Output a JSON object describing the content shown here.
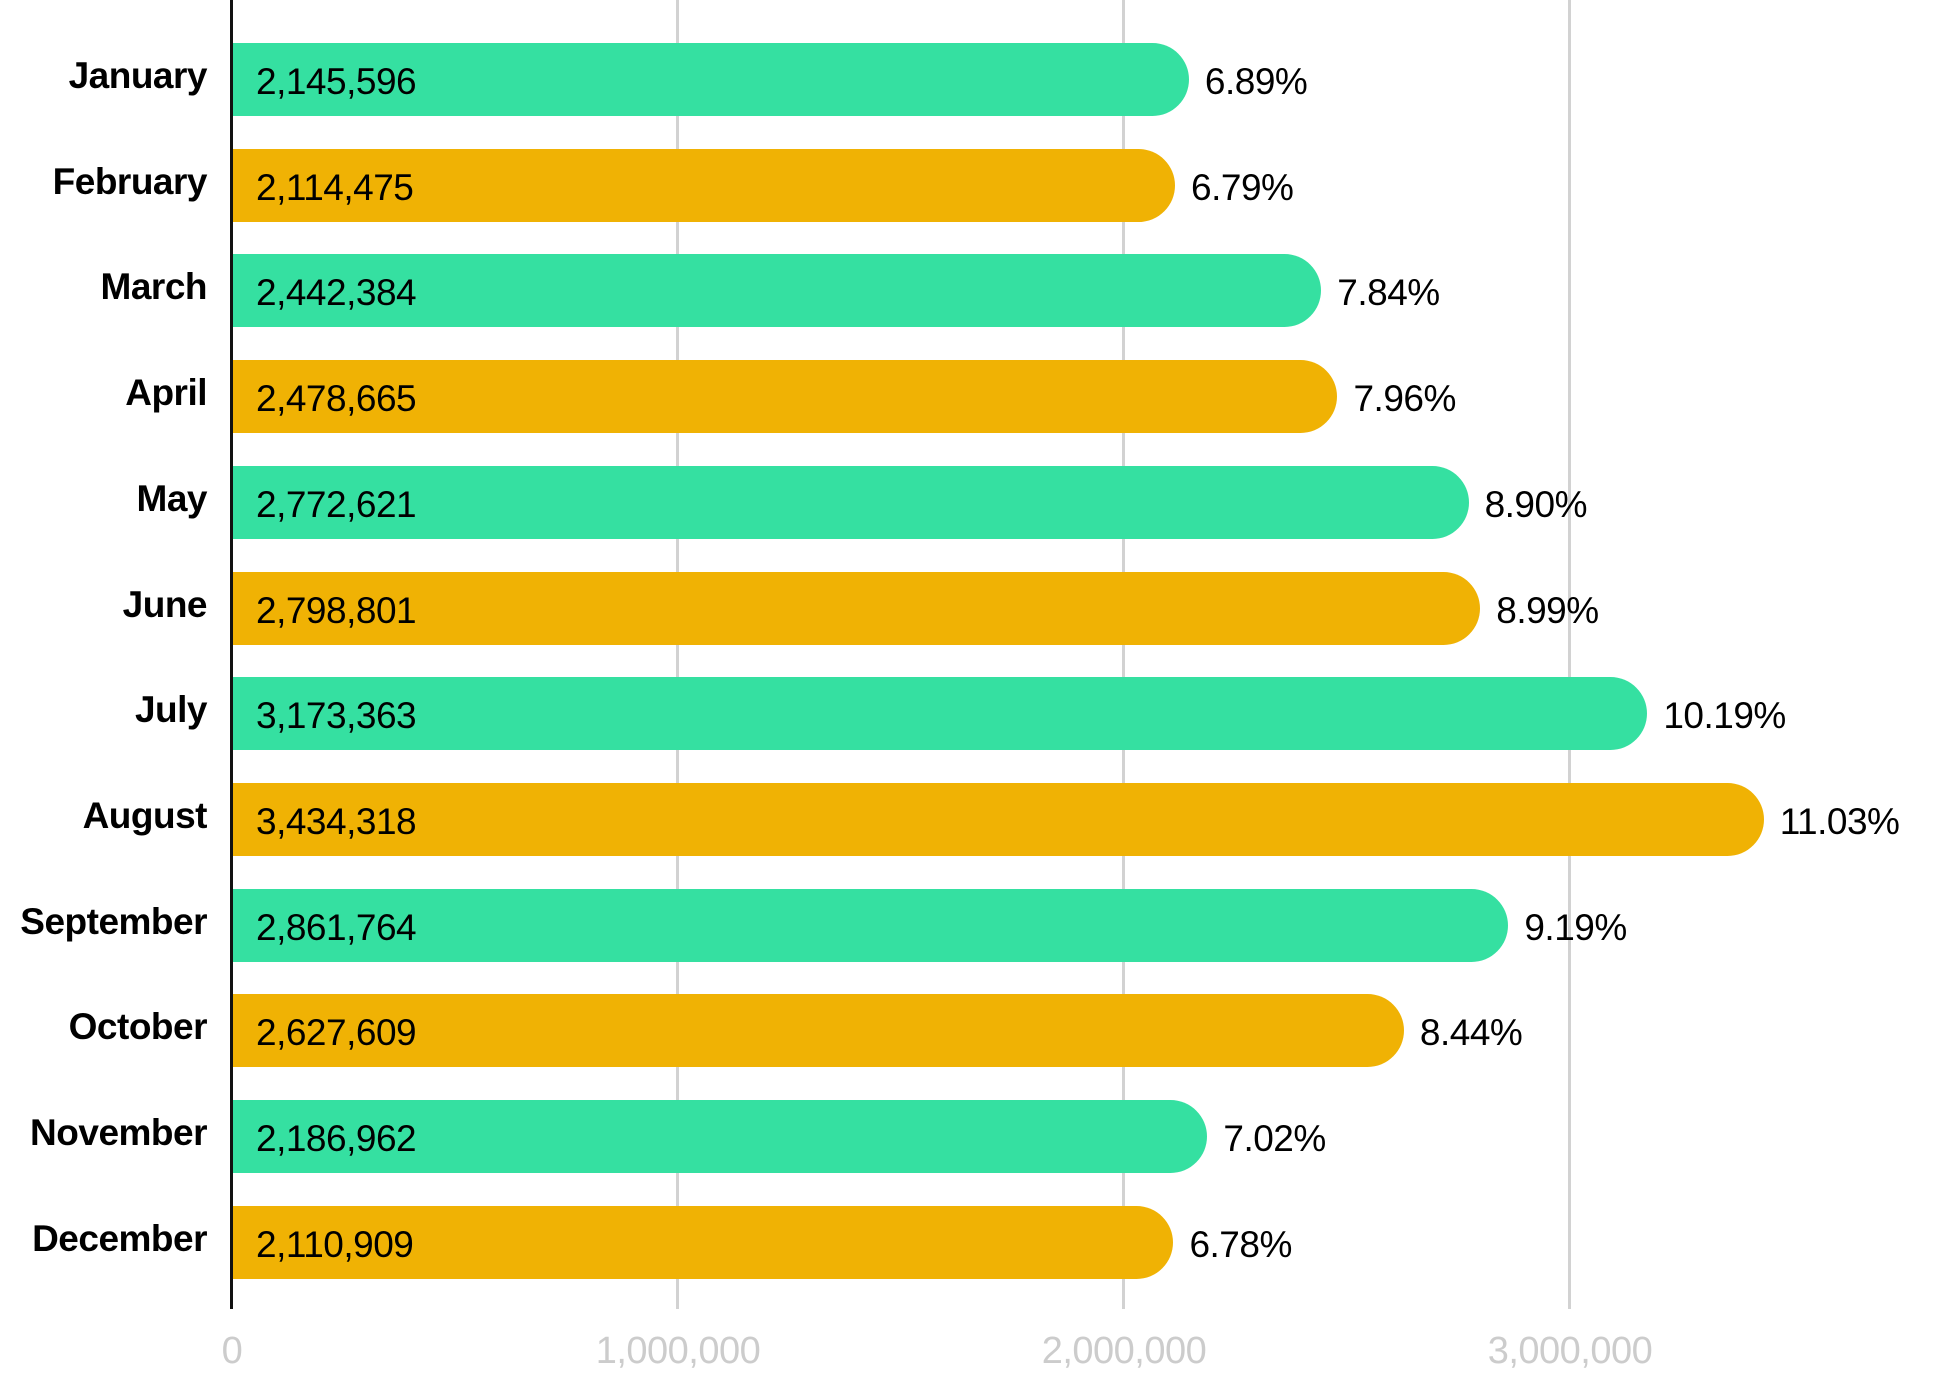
{
  "chart_data": {
    "type": "bar",
    "orientation": "horizontal",
    "title": "",
    "xlabel": "",
    "ylabel": "",
    "xlim": [
      0,
      3700000
    ],
    "grid": true,
    "legend": null,
    "categories": [
      "January",
      "February",
      "March",
      "April",
      "May",
      "June",
      "July",
      "August",
      "September",
      "October",
      "November",
      "December"
    ],
    "values": [
      2145596,
      2114475,
      2442384,
      2478665,
      2772621,
      2798801,
      3173363,
      3434318,
      2861764,
      2627609,
      2186962,
      2110909
    ],
    "value_labels": [
      "2,145,596",
      "2,114,475",
      "2,442,384",
      "2,478,665",
      "2,772,621",
      "2,798,801",
      "3,173,363",
      "3,434,318",
      "2,861,764",
      "2,627,609",
      "2,186,962",
      "2,110,909"
    ],
    "percent_labels": [
      "6.89%",
      "6.79%",
      "7.84%",
      "7.96%",
      "8.90%",
      "8.99%",
      "10.19%",
      "11.03%",
      "9.19%",
      "8.44%",
      "7.02%",
      "6.78%"
    ],
    "bar_colors": [
      "#35e0a1",
      "#f0b204",
      "#35e0a1",
      "#f0b204",
      "#35e0a1",
      "#f0b204",
      "#35e0a1",
      "#f0b204",
      "#35e0a1",
      "#f0b204",
      "#35e0a1",
      "#f0b204"
    ],
    "x_ticks": [
      0,
      1000000,
      2000000,
      3000000
    ],
    "x_tick_labels": [
      "0",
      "1,000,000",
      "2,000,000",
      "3,000,000"
    ]
  },
  "colors": {
    "green": "#35e0a1",
    "gold": "#f0b204",
    "gridline": "#d2d2d2",
    "tick_label": "#cccccc",
    "axis": "#111111"
  }
}
